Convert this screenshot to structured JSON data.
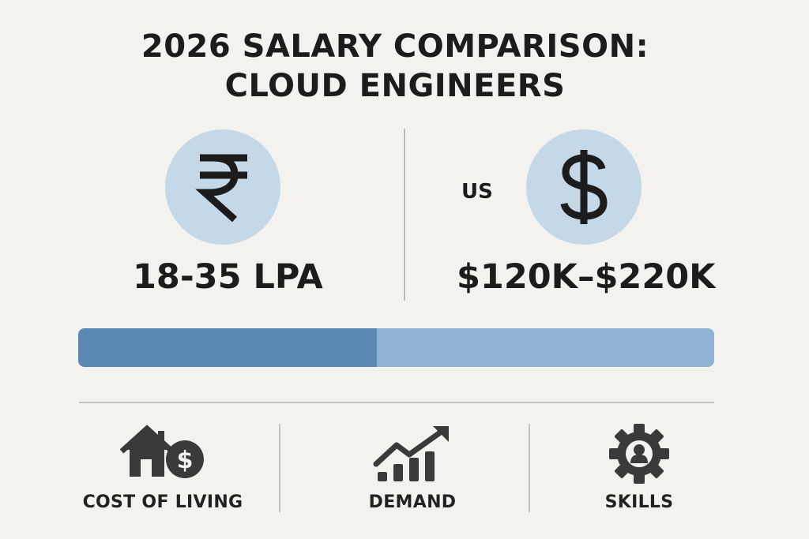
{
  "title": {
    "line1": "2026 SALARY COMPARISON:",
    "line2": "CLOUD ENGINEERS"
  },
  "india": {
    "icon": "rupee-icon",
    "symbol": "₹",
    "salary": "18-35 LPA"
  },
  "us": {
    "label": "US",
    "icon": "dollar-icon",
    "symbol": "$",
    "salary": "$120K–$220K"
  },
  "comparison_bar": {
    "fill_fraction": 0.47,
    "left_color": "#5c88b6",
    "right_color": "#8fb3d5"
  },
  "factors": [
    {
      "icon": "house-dollar-icon",
      "label": "COST OF LIVING"
    },
    {
      "icon": "growth-chart-icon",
      "label": "DEMAND"
    },
    {
      "icon": "gear-person-icon",
      "label": "SKILLS"
    }
  ],
  "colors": {
    "background": "#f3f2ee",
    "coin": "#c4d8e7",
    "text": "#1c1c1c",
    "icon": "#3a3a3a"
  }
}
